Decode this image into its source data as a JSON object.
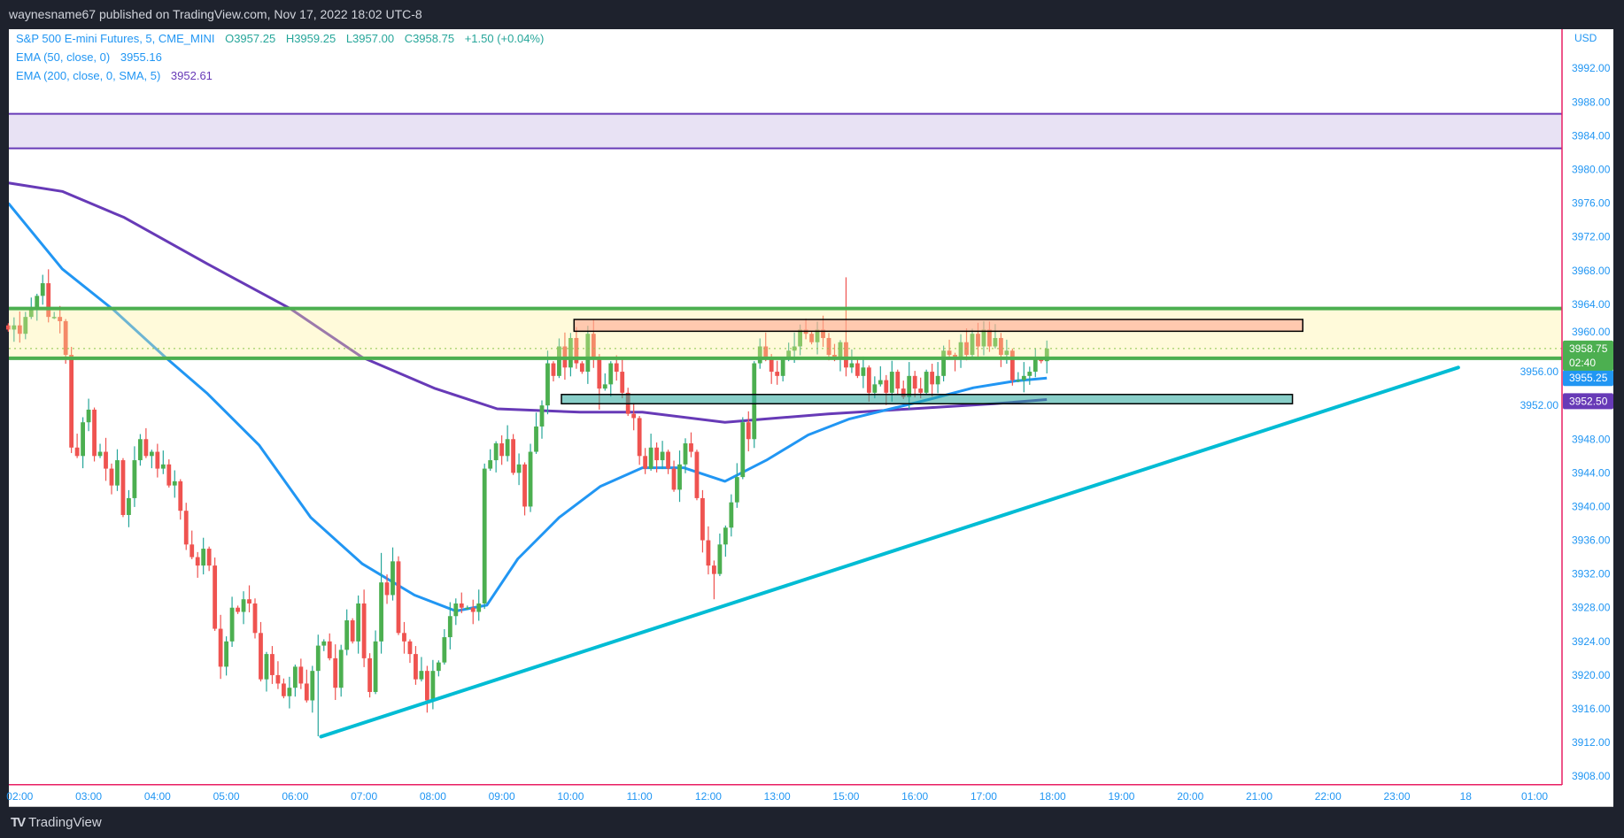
{
  "header": {
    "published": "waynesname67 published on TradingView.com, Nov 17, 2022 18:02 UTC-8"
  },
  "legend": {
    "symbol": "S&P 500 E-mini Futures, 5, CME_MINI",
    "open": "O3957.25",
    "high": "H3959.25",
    "low": "L3957.00",
    "close": "C3958.75",
    "change": "+1.50 (+0.04%)",
    "ema50_label": "EMA (50, close, 0)",
    "ema50_value": "3955.16",
    "ema200_label": "EMA (200, close, 0, SMA, 5)",
    "ema200_value": "3952.61"
  },
  "footer": {
    "brand": "TradingView"
  },
  "colors": {
    "up": "#4caf50",
    "up_wick": "#26a69a",
    "down": "#ef5350",
    "ema50": "#2196f3",
    "ema200": "#673ab7",
    "trend": "#00bcd4",
    "zone_line": "#4caf50",
    "pink": "#e91e63"
  },
  "chart_data": {
    "type": "candlestick",
    "title": "S&P 500 E-mini Futures, 5, CME_MINI",
    "currency": "USD",
    "ylim": [
      3906,
      3996
    ],
    "y_ticks": [
      "3992.00",
      "3988.00",
      "3984.00",
      "3980.00",
      "3976.00",
      "3972.00",
      "3968.00",
      "3964.00",
      "3960.00",
      "3956.00",
      "3952.00",
      "3948.00",
      "3944.00",
      "3940.00",
      "3936.00",
      "3932.00",
      "3928.00",
      "3924.00",
      "3920.00",
      "3916.00",
      "3912.00",
      "3908.00"
    ],
    "x_ticks": [
      "02:00",
      "03:00",
      "04:00",
      "05:00",
      "06:00",
      "07:00",
      "08:00",
      "09:00",
      "10:00",
      "11:00",
      "12:00",
      "13:00",
      "15:00",
      "16:00",
      "17:00",
      "18:00",
      "19:00",
      "20:00",
      "21:00",
      "22:00",
      "23:00",
      "18",
      "01:00"
    ],
    "bars_per_hour": 12,
    "first_open": 3961.5,
    "close": [
      3961.0,
      3961.5,
      3960.5,
      3962.5,
      3963.5,
      3965.0,
      3966.5,
      3962.5,
      3962.5,
      3962.0,
      3958.0,
      3947.0,
      3946.0,
      3950.0,
      3951.5,
      3946.0,
      3946.5,
      3944.5,
      3942.5,
      3945.5,
      3939.0,
      3941.0,
      3945.5,
      3948.0,
      3946.0,
      3946.5,
      3944.5,
      3945.0,
      3942.5,
      3943.0,
      3939.5,
      3935.5,
      3934.0,
      3933.0,
      3935.0,
      3933.0,
      3925.5,
      3921.0,
      3924.0,
      3928.0,
      3927.5,
      3929.0,
      3928.5,
      3925.0,
      3919.5,
      3922.5,
      3920.0,
      3919.0,
      3917.5,
      3918.5,
      3921.0,
      3919.0,
      3917.0,
      3920.5,
      3923.5,
      3924.0,
      3922.0,
      3918.5,
      3923.0,
      3926.5,
      3924.0,
      3928.5,
      3922.0,
      3918.0,
      3924.0,
      3931.0,
      3929.5,
      3933.5,
      3925.0,
      3924.0,
      3922.5,
      3919.5,
      3920.5,
      3917.0,
      3920.5,
      3921.5,
      3924.5,
      3927.0,
      3928.5,
      3928.0,
      3928.0,
      3927.5,
      3928.5,
      3944.5,
      3945.5,
      3947.5,
      3946.0,
      3948.0,
      3944.0,
      3945.0,
      3940.0,
      3946.5,
      3949.5,
      3952.0,
      3957.0,
      3955.5,
      3959.0,
      3956.5,
      3960.0,
      3957.0,
      3956.0,
      3960.5,
      3957.5,
      3954.0,
      3954.5,
      3957.0,
      3956.0,
      3953.5,
      3951.0,
      3950.5,
      3946.0,
      3944.5,
      3947.0,
      3945.5,
      3946.5,
      3944.5,
      3942.0,
      3945.0,
      3947.5,
      3946.5,
      3941.0,
      3936.0,
      3933.0,
      3932.0,
      3935.5,
      3937.5,
      3940.5,
      3943.5,
      3950.0,
      3948.0,
      3957.0,
      3959.0,
      3957.5,
      3956.0,
      3955.5,
      3957.5,
      3958.5,
      3959.0,
      3961.0,
      3960.5,
      3959.5,
      3961.0,
      3960.0,
      3958.0,
      3957.5,
      3959.5,
      3956.5,
      3957.0,
      3955.5,
      3956.5,
      3953.5,
      3954.5,
      3955.0,
      3953.5,
      3956.0,
      3954.0,
      3953.0,
      3955.5,
      3954.0,
      3953.5,
      3956.0,
      3954.5,
      3955.5,
      3958.5,
      3958.0,
      3957.5,
      3959.5,
      3958.0,
      3960.5,
      3959.0,
      3961.0,
      3959.0,
      3960.0,
      3958.0,
      3958.5,
      3955.0,
      3955.0,
      3955.5,
      3956.0,
      3957.5,
      3957.25,
      3958.75
    ],
    "high_overrides": {
      "6": 3967.5,
      "65": 3934.5,
      "94": 3958.5,
      "146": 3967.2,
      "170": 3962.0
    },
    "low_overrides": {
      "54": 3912.75,
      "123": 3929.0,
      "103": 3951.5
    },
    "ema50": {
      "name": "EMA (50, close, 0)",
      "points": [
        [
          0,
          3976.0
        ],
        [
          9.4,
          3968.2
        ],
        [
          18.4,
          3963.3
        ],
        [
          27.4,
          3957.7
        ],
        [
          34.7,
          3953.4
        ],
        [
          43.7,
          3947.3
        ],
        [
          52.7,
          3938.7
        ],
        [
          61.7,
          3933.2
        ],
        [
          70.8,
          3929.5
        ],
        [
          78,
          3927.6
        ],
        [
          83.4,
          3928.3
        ],
        [
          88.8,
          3933.8
        ],
        [
          96,
          3938.7
        ],
        [
          103.2,
          3942.4
        ],
        [
          110.5,
          3944.6
        ],
        [
          117.7,
          3944.6
        ],
        [
          124.9,
          3943.0
        ],
        [
          132.1,
          3945.5
        ],
        [
          139.4,
          3948.5
        ],
        [
          146.6,
          3950.4
        ],
        [
          153.8,
          3951.6
        ],
        [
          161,
          3952.8
        ],
        [
          168.2,
          3954.1
        ],
        [
          175.5,
          3954.9
        ],
        [
          181,
          3955.25
        ]
      ]
    },
    "ema200": {
      "name": "EMA (200, close, 0, SMA, 5)",
      "points": [
        [
          0,
          3978.4
        ],
        [
          9.4,
          3977.4
        ],
        [
          20.2,
          3974.3
        ],
        [
          34.7,
          3968.8
        ],
        [
          49.1,
          3963.5
        ],
        [
          61.7,
          3957.7
        ],
        [
          74.4,
          3954.0
        ],
        [
          85.2,
          3951.6
        ],
        [
          99.6,
          3951.2
        ],
        [
          110.5,
          3951.2
        ],
        [
          124.9,
          3950.0
        ],
        [
          132.1,
          3950.4
        ],
        [
          142.9,
          3951.0
        ],
        [
          157.4,
          3951.6
        ],
        [
          171.8,
          3952.2
        ],
        [
          181,
          3952.7
        ]
      ]
    },
    "drawings": {
      "resistance_box": {
        "price_top": 3986.6,
        "price_bottom": 3982.5
      },
      "range_zone": {
        "price_top": 3963.5,
        "price_bottom": 3957.6
      },
      "supply_rect": {
        "i_start": 98.6,
        "i_end": 225.6,
        "price_top": 3962.2,
        "price_bottom": 3960.8
      },
      "demand_rect": {
        "i_start": 96.4,
        "i_end": 223.8,
        "price_top": 3953.3,
        "price_bottom": 3952.2
      },
      "trendline": {
        "i_start": 54.5,
        "p_start": 3912.7,
        "i_end": 252.7,
        "p_end": 3956.5
      },
      "pink_hline": {
        "price": 3907.0
      }
    },
    "last_price": {
      "value": "3958.75",
      "countdown": "02:40",
      "price": 3958.75
    },
    "ema50_tag": {
      "value": "3955.25",
      "price": 3955.25
    },
    "ema200_tag": {
      "value": "3952.50",
      "price": 3952.5
    }
  }
}
